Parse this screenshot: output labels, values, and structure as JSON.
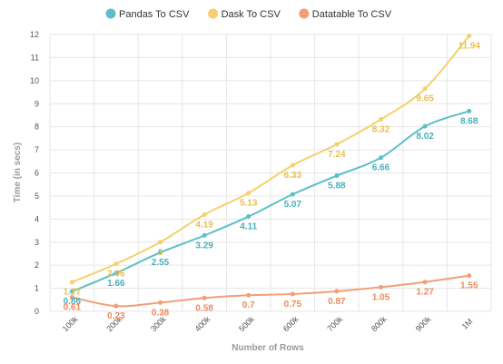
{
  "chart_data": {
    "type": "line",
    "title": "",
    "xlabel": "Number of Rows",
    "ylabel": "Time (in secs)",
    "categories": [
      "100k",
      "200k",
      "300k",
      "400k",
      "500k",
      "600k",
      "700k",
      "800k",
      "900k",
      "1M"
    ],
    "ylim": [
      0,
      12
    ],
    "yticks": [
      0,
      1,
      2,
      3,
      4,
      5,
      6,
      7,
      8,
      9,
      10,
      11,
      12
    ],
    "grid": true,
    "legend": "top-center",
    "series": [
      {
        "name": "Pandas To CSV",
        "color": "#5bbfc8",
        "values": [
          0.86,
          1.66,
          2.55,
          3.29,
          4.11,
          5.07,
          5.88,
          6.66,
          8.02,
          8.68
        ]
      },
      {
        "name": "Dask To CSV",
        "color": "#f5d06f",
        "values": [
          1.27,
          2.06,
          3,
          4.19,
          5.13,
          6.33,
          7.24,
          8.32,
          9.65,
          11.94
        ]
      },
      {
        "name": "Datatable To CSV",
        "color": "#f29e76",
        "values": [
          0.61,
          0.23,
          0.38,
          0.58,
          0.7,
          0.75,
          0.87,
          1.05,
          1.27,
          1.55
        ]
      }
    ]
  }
}
